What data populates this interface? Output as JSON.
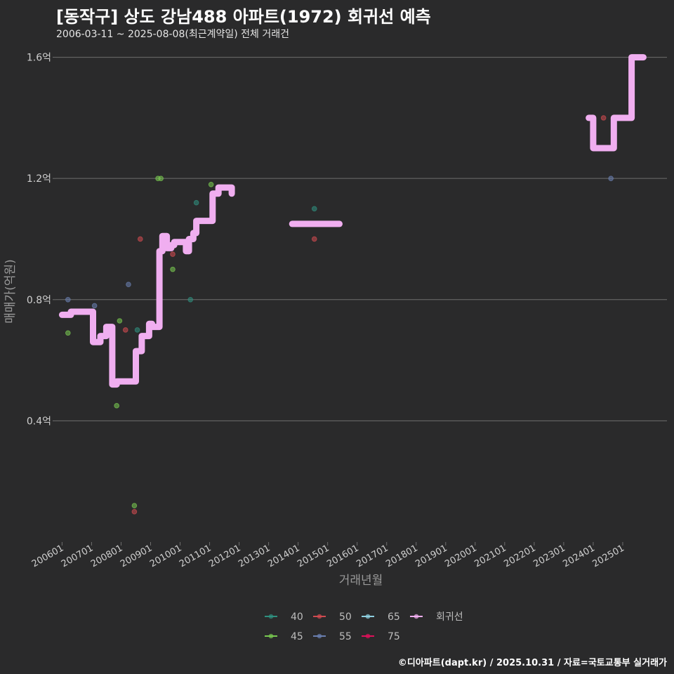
{
  "title": "[동작구] 상도 강남488 아파트(1972) 회귀선 예측",
  "subtitle": "2006-03-11 ~ 2025-08-08(최근계약일) 전체 거래건",
  "caption": "©디아파트(dapt.kr) / 2025.10.31 / 자료=국토교통부 실거래가",
  "colors": {
    "background": "#2a2a2b",
    "grid": "#6e6e6e",
    "axis_text": "#cfcfcf",
    "axis_title": "#9a9a9a",
    "regression": "#f0aef0",
    "s40": "#2f8f7f",
    "s45": "#78c850",
    "s50": "#d04a50",
    "s55": "#6a7fb0",
    "s65": "#8ed0e0",
    "s75": "#e0105a"
  },
  "chart_data": {
    "type": "scatter",
    "title": "[동작구] 상도 강남488 아파트(1972) 회귀선 예측",
    "xlabel": "거래년월",
    "ylabel": "매매가(억원)",
    "xlim": [
      2005.8,
      2026.5
    ],
    "ylim": [
      0.0,
      1.65
    ],
    "y_ticks": [
      0.4,
      0.8,
      1.2,
      1.6
    ],
    "y_tick_labels": [
      "0.4억",
      "0.8억",
      "1.2억",
      "1.6억"
    ],
    "x_ticks": [
      2006,
      2007,
      2008,
      2009,
      2010,
      2011,
      2012,
      2013,
      2014,
      2015,
      2016,
      2017,
      2018,
      2019,
      2020,
      2021,
      2022,
      2023,
      2024,
      2025
    ],
    "x_tick_labels": [
      "200601",
      "200701",
      "200801",
      "200901",
      "201001",
      "201101",
      "201201",
      "201301",
      "201401",
      "201501",
      "201601",
      "201701",
      "201801",
      "201901",
      "202001",
      "202101",
      "202201",
      "202301",
      "202401",
      "202501"
    ],
    "legend": {
      "position": "bottom",
      "entries": [
        {
          "key": "40",
          "label": "40",
          "color": "#2f8f7f"
        },
        {
          "key": "45",
          "label": "45",
          "color": "#78c850"
        },
        {
          "key": "50",
          "label": "50",
          "color": "#d04a50"
        },
        {
          "key": "55",
          "label": "55",
          "color": "#6a7fb0"
        },
        {
          "key": "65",
          "label": "65",
          "color": "#8ed0e0"
        },
        {
          "key": "75",
          "label": "75",
          "color": "#e0105a"
        },
        {
          "key": "reg",
          "label": "회귀선",
          "color": "#f0aef0"
        }
      ]
    },
    "points": [
      {
        "x": 2006.2,
        "y": 0.8,
        "series": "55"
      },
      {
        "x": 2006.2,
        "y": 0.69,
        "series": "45"
      },
      {
        "x": 2007.1,
        "y": 0.78,
        "series": "55"
      },
      {
        "x": 2007.85,
        "y": 0.45,
        "series": "45"
      },
      {
        "x": 2007.95,
        "y": 0.73,
        "series": "45"
      },
      {
        "x": 2008.15,
        "y": 0.7,
        "series": "50"
      },
      {
        "x": 2008.25,
        "y": 0.85,
        "series": "55"
      },
      {
        "x": 2008.45,
        "y": 0.12,
        "series": "45"
      },
      {
        "x": 2008.45,
        "y": 0.1,
        "series": "50"
      },
      {
        "x": 2008.55,
        "y": 0.7,
        "series": "40"
      },
      {
        "x": 2008.65,
        "y": 1.0,
        "series": "50"
      },
      {
        "x": 2009.25,
        "y": 1.2,
        "series": "45"
      },
      {
        "x": 2009.35,
        "y": 1.2,
        "series": "45"
      },
      {
        "x": 2009.75,
        "y": 0.95,
        "series": "50"
      },
      {
        "x": 2009.75,
        "y": 0.9,
        "series": "45"
      },
      {
        "x": 2010.35,
        "y": 0.8,
        "series": "40"
      },
      {
        "x": 2010.55,
        "y": 1.12,
        "series": "40"
      },
      {
        "x": 2011.05,
        "y": 1.18,
        "series": "45"
      },
      {
        "x": 2014.55,
        "y": 1.1,
        "series": "40"
      },
      {
        "x": 2014.55,
        "y": 1.0,
        "series": "50"
      },
      {
        "x": 2024.35,
        "y": 1.4,
        "series": "50"
      },
      {
        "x": 2024.6,
        "y": 1.2,
        "series": "55"
      }
    ],
    "regression_segments": [
      [
        [
          2006.0,
          0.75
        ],
        [
          2006.3,
          0.75
        ],
        [
          2006.3,
          0.76
        ],
        [
          2007.05,
          0.76
        ],
        [
          2007.05,
          0.66
        ],
        [
          2007.3,
          0.66
        ],
        [
          2007.3,
          0.68
        ],
        [
          2007.5,
          0.68
        ],
        [
          2007.5,
          0.71
        ],
        [
          2007.7,
          0.71
        ],
        [
          2007.7,
          0.52
        ],
        [
          2007.85,
          0.52
        ],
        [
          2007.85,
          0.53
        ],
        [
          2008.5,
          0.53
        ],
        [
          2008.5,
          0.63
        ],
        [
          2008.7,
          0.63
        ],
        [
          2008.7,
          0.68
        ],
        [
          2008.95,
          0.68
        ],
        [
          2008.95,
          0.72
        ],
        [
          2009.05,
          0.72
        ],
        [
          2009.05,
          0.71
        ],
        [
          2009.3,
          0.71
        ],
        [
          2009.3,
          0.96
        ],
        [
          2009.4,
          0.96
        ],
        [
          2009.4,
          1.01
        ],
        [
          2009.55,
          1.01
        ],
        [
          2009.55,
          0.97
        ],
        [
          2009.7,
          0.97
        ],
        [
          2009.7,
          0.98
        ],
        [
          2009.8,
          0.98
        ],
        [
          2009.8,
          0.99
        ],
        [
          2010.2,
          0.99
        ],
        [
          2010.2,
          0.96
        ],
        [
          2010.3,
          0.96
        ],
        [
          2010.3,
          1.0
        ],
        [
          2010.45,
          1.0
        ],
        [
          2010.45,
          1.02
        ],
        [
          2010.55,
          1.02
        ],
        [
          2010.55,
          1.06
        ],
        [
          2011.1,
          1.06
        ],
        [
          2011.1,
          1.15
        ],
        [
          2011.3,
          1.15
        ],
        [
          2011.3,
          1.17
        ],
        [
          2011.75,
          1.17
        ],
        [
          2011.75,
          1.15
        ]
      ],
      [
        [
          2013.8,
          1.05
        ],
        [
          2015.4,
          1.05
        ]
      ],
      [
        [
          2023.85,
          1.4
        ],
        [
          2024.0,
          1.4
        ],
        [
          2024.0,
          1.3
        ],
        [
          2024.7,
          1.3
        ],
        [
          2024.7,
          1.4
        ],
        [
          2025.3,
          1.4
        ],
        [
          2025.3,
          1.6
        ],
        [
          2025.7,
          1.6
        ]
      ]
    ]
  }
}
